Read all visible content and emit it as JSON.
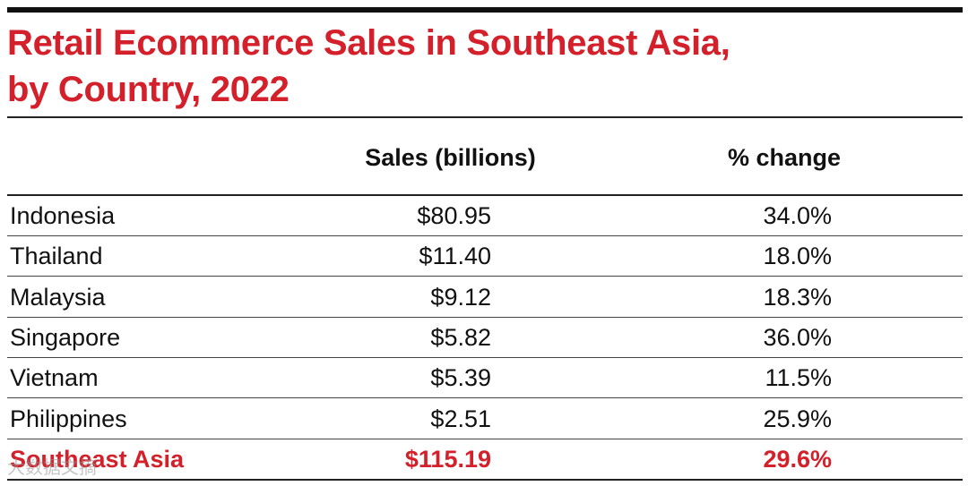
{
  "chart_data": {
    "type": "table",
    "title_lines": [
      "Retail Ecommerce Sales in Southeast Asia,",
      "by Country, 2022"
    ],
    "columns": [
      "",
      "Sales (billions)",
      "% change"
    ],
    "rows": [
      {
        "country": "Indonesia",
        "sales": "$80.95",
        "change": "34.0%"
      },
      {
        "country": "Thailand",
        "sales": "$11.40",
        "change": "18.0%"
      },
      {
        "country": "Malaysia",
        "sales": "$9.12",
        "change": "18.3%"
      },
      {
        "country": "Singapore",
        "sales": "$5.82",
        "change": "36.0%"
      },
      {
        "country": "Vietnam",
        "sales": "$5.39",
        "change": "11.5%"
      },
      {
        "country": "Philippines",
        "sales": "$2.51",
        "change": "25.9%"
      }
    ],
    "total": {
      "country": "Southeast Asia",
      "sales": "$115.19",
      "change": "29.6%"
    }
  },
  "watermark": "大数据文摘",
  "colors": {
    "accent": "#d3202a",
    "text": "#111111",
    "rule": "#222222"
  }
}
